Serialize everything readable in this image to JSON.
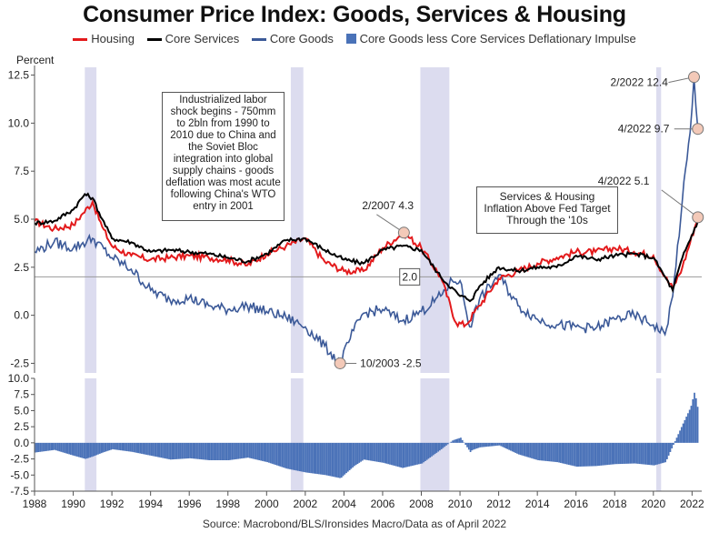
{
  "title": "Consumer Price Index: Goods, Services & Housing",
  "legend": [
    {
      "label": "Housing",
      "color": "#e31a1c",
      "kind": "line"
    },
    {
      "label": "Core Services",
      "color": "#000000",
      "kind": "line"
    },
    {
      "label": "Core Goods",
      "color": "#3b5998",
      "kind": "line"
    },
    {
      "label": "Core Goods less Core Services Deflationary Impulse",
      "color": "#4a72b8",
      "kind": "box"
    }
  ],
  "source": "Source: Macrobond/BLS/Ironsides Macro/Data as of April 2022",
  "annotations": {
    "box_labor": "Industrialized labor shock begins - 750mm to 2bln from 1990 to 2010 due to China and the Soviet Bloc integration into global supply chains - goods deflation was most acute following China's WTO entry in 2001",
    "box_services": "Services & Housing Inflation Above Fed Target Through the '10s",
    "ref_line_label": "2.0",
    "pt_2007": "2/2007 4.3",
    "pt_2003": "10/2003 -2.5",
    "pt_2022_feb": "2/2022 12.4",
    "pt_2022_apr_goods": "4/2022 9.7",
    "pt_2022_apr_housing": "4/2022 5.1"
  },
  "chart_data": [
    {
      "type": "line",
      "title": "Consumer Price Index: Goods, Services & Housing",
      "ylabel": "Percent",
      "xlim": [
        1988,
        2022.5
      ],
      "ylim": [
        -3,
        13
      ],
      "yticks": [
        -2.5,
        0.0,
        2.5,
        5.0,
        7.5,
        10.0,
        12.5
      ],
      "xticks": [
        1988,
        1990,
        1992,
        1994,
        1996,
        1998,
        2000,
        2002,
        2004,
        2006,
        2008,
        2010,
        2012,
        2014,
        2016,
        2018,
        2020,
        2022
      ],
      "reference_line": 2.0,
      "recessions": [
        [
          1990.6,
          1991.2
        ],
        [
          2001.25,
          2001.9
        ],
        [
          2007.95,
          2009.45
        ],
        [
          2020.15,
          2020.4
        ]
      ],
      "series": [
        {
          "name": "Housing",
          "color": "#e31a1c",
          "x": [
            1988,
            1989,
            1990,
            1990.5,
            1991,
            1991.5,
            1992,
            1993,
            1994,
            1995,
            1996,
            1997,
            1998,
            1999,
            2000,
            2001,
            2002,
            2003,
            2004,
            2005,
            2006,
            2007.1,
            2008,
            2009,
            2009.8,
            2010.3,
            2011,
            2012,
            2013,
            2014,
            2015,
            2016,
            2017,
            2018,
            2019,
            2020,
            2020.6,
            2021,
            2021.5,
            2022.3
          ],
          "y": [
            4.9,
            4.5,
            4.7,
            5.3,
            5.9,
            4.6,
            3.6,
            3.1,
            2.9,
            3.0,
            3.1,
            3.0,
            2.9,
            2.6,
            3.2,
            3.6,
            4.0,
            2.8,
            2.3,
            2.3,
            3.5,
            4.3,
            3.5,
            2.0,
            -0.4,
            -0.5,
            0.5,
            1.9,
            2.3,
            2.7,
            3.0,
            3.3,
            3.3,
            3.5,
            3.3,
            3.1,
            2.0,
            1.4,
            2.5,
            5.1
          ]
        },
        {
          "name": "Core Services",
          "color": "#000000",
          "x": [
            1988,
            1989,
            1990,
            1990.6,
            1991,
            1991.5,
            1992,
            1993,
            1994,
            1995,
            1996,
            1997,
            1998,
            1999,
            2000,
            2001,
            2002,
            2003,
            2004,
            2005,
            2006,
            2007,
            2008,
            2009,
            2010,
            2010.6,
            2011,
            2012,
            2013,
            2014,
            2015,
            2016,
            2017,
            2018,
            2019,
            2020,
            2020.6,
            2021,
            2021.5,
            2022.3
          ],
          "y": [
            4.8,
            4.9,
            5.5,
            6.3,
            6.1,
            5.0,
            4.0,
            3.8,
            3.3,
            3.4,
            3.3,
            3.2,
            3.0,
            2.8,
            3.2,
            3.9,
            4.0,
            3.4,
            2.9,
            2.7,
            3.4,
            3.6,
            3.4,
            2.0,
            1.0,
            0.8,
            1.5,
            2.5,
            2.3,
            2.5,
            2.5,
            3.1,
            2.9,
            3.1,
            3.2,
            3.0,
            2.0,
            1.3,
            3.0,
            4.9
          ]
        },
        {
          "name": "Core Goods",
          "color": "#3b5998",
          "x": [
            1988,
            1989,
            1990,
            1991,
            1992,
            1993,
            1994,
            1995,
            1996,
            1997,
            1998,
            1999,
            2000,
            2001,
            2002,
            2003,
            2003.8,
            2004.5,
            2005,
            2006,
            2007,
            2008,
            2009,
            2009.6,
            2010,
            2010.5,
            2011,
            2012,
            2013,
            2014,
            2015,
            2016,
            2017,
            2018,
            2019,
            2020,
            2020.6,
            2021,
            2021.5,
            2021.9,
            2022.1,
            2022.3
          ],
          "y": [
            3.3,
            3.8,
            3.5,
            4.0,
            3.0,
            2.4,
            1.3,
            0.8,
            0.9,
            0.5,
            0.3,
            0.5,
            0.2,
            -0.1,
            -0.6,
            -1.6,
            -2.5,
            -0.8,
            0.1,
            0.3,
            -0.3,
            0.2,
            1.0,
            1.8,
            1.8,
            -0.6,
            0.8,
            2.1,
            0.5,
            -0.2,
            -0.5,
            -0.6,
            -0.7,
            -0.2,
            0.0,
            -0.5,
            -1.0,
            1.0,
            6.0,
            9.5,
            12.4,
            9.7
          ]
        },
        {
          "name": "Core Goods less Core Services Deflationary Impulse",
          "color": "#4a72b8",
          "type": "bar",
          "ylim": [
            -7.5,
            10.0
          ],
          "yticks": [
            -7.5,
            -5.0,
            -2.5,
            0.0,
            2.5,
            5.0,
            7.5,
            10.0
          ]
        }
      ],
      "labeled_points": [
        {
          "label": "2/2007 4.3",
          "x": 2007.1,
          "y": 4.3
        },
        {
          "label": "10/2003 -2.5",
          "x": 2003.8,
          "y": -2.5
        },
        {
          "label": "2/2022 12.4",
          "x": 2022.1,
          "y": 12.4
        },
        {
          "label": "4/2022 9.7",
          "x": 2022.3,
          "y": 9.7
        },
        {
          "label": "4/2022 5.1",
          "x": 2022.3,
          "y": 5.1
        }
      ]
    }
  ]
}
